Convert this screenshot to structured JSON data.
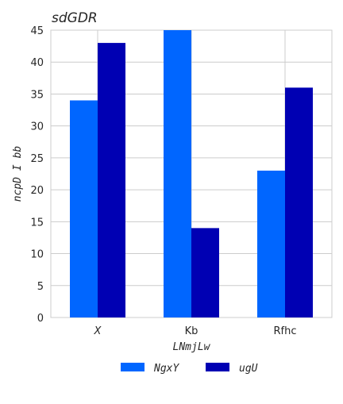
{
  "chart_data": {
    "type": "bar",
    "title": "sdGDR",
    "xlabel": "LNmjLw",
    "ylabel": "ncpD  I bb",
    "categories": [
      "X",
      "Kb",
      "Rfhc"
    ],
    "series": [
      {
        "name": "NgxY",
        "values": [
          34,
          45,
          23
        ],
        "color": "#0066ff"
      },
      {
        "name": "ugU",
        "values": [
          43,
          14,
          36
        ],
        "color": "#0000b3"
      }
    ],
    "ylim": [
      0,
      45
    ],
    "yticks": [
      0,
      5,
      10,
      15,
      20,
      25,
      30,
      35,
      40,
      45
    ],
    "grid": true,
    "legend_position": "bottom-center",
    "colors": {
      "grid": "#cccccc",
      "text": "#262626"
    }
  }
}
